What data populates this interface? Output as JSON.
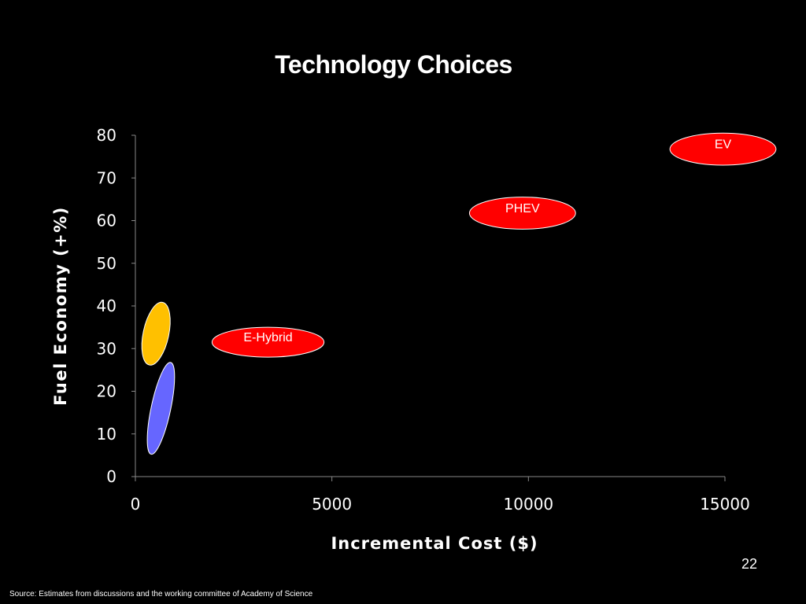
{
  "slide": {
    "title": "Technology Choices",
    "page_number": "22",
    "source": "Source:  Estimates from discussions and the working committee of Academy of Science"
  },
  "chart_data": {
    "type": "scatter",
    "title": "",
    "xlabel": "Incremental Cost ($)",
    "ylabel": "Fuel Economy  (+%)",
    "xlim": [
      0,
      15000
    ],
    "ylim": [
      0,
      80
    ],
    "x_ticks": [
      0,
      5000,
      10000,
      15000
    ],
    "y_ticks": [
      0,
      10,
      20,
      30,
      40,
      50,
      60,
      70,
      80
    ],
    "grid": false,
    "bubbles": [
      {
        "label": "",
        "x": 400,
        "y": 13,
        "x_extent": [
          250,
          1050
        ],
        "y_extent": [
          5,
          27
        ],
        "color": "#6666ff",
        "tilt": true
      },
      {
        "label": "",
        "x": 550,
        "y": 34,
        "x_extent": [
          0,
          1050
        ],
        "y_extent": [
          26,
          41
        ],
        "color": "#ffc000",
        "tilt": true
      },
      {
        "label": "E-Hybrid",
        "x": 3400,
        "y": 32,
        "x_extent": [
          1950,
          4800
        ],
        "y_extent": [
          28,
          35
        ],
        "color": "#ff0000",
        "tilt": false
      },
      {
        "label": "PHEV",
        "x": 9800,
        "y": 62,
        "x_extent": [
          8500,
          11200
        ],
        "y_extent": [
          58,
          65.5
        ],
        "color": "#ff0000",
        "tilt": false
      },
      {
        "label": "EV",
        "x": 14900,
        "y": 77,
        "x_extent": [
          13600,
          16300
        ],
        "y_extent": [
          73,
          80.5
        ],
        "color": "#ff0000",
        "tilt": false
      }
    ]
  }
}
